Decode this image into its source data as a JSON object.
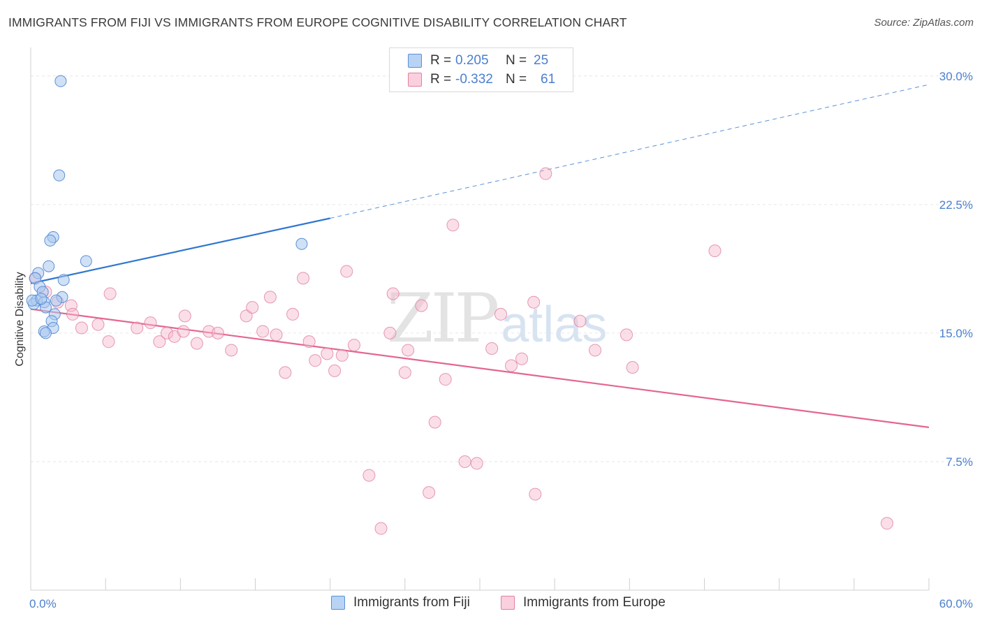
{
  "header": {
    "title": "IMMIGRANTS FROM FIJI VS IMMIGRANTS FROM EUROPE COGNITIVE DISABILITY CORRELATION CHART",
    "source": "Source: ZipAtlas.com"
  },
  "legend": {
    "rows": [
      {
        "r_label": "R =",
        "r_value": "0.205",
        "n_label": "N =",
        "n_value": "25"
      },
      {
        "r_label": "R =",
        "r_value": "-0.332",
        "n_label": "N =",
        "n_value": "61"
      }
    ]
  },
  "watermark": {
    "zip": "ZIP",
    "atlas": "atlas"
  },
  "colors": {
    "fiji_fill": "#a9c8ee",
    "fiji_stroke": "#5b8fd6",
    "fiji_line": "#2f77d0",
    "europe_fill": "#f6b9cd",
    "europe_stroke": "#e07fa0",
    "europe_line": "#e4668f",
    "axis_text": "#4a7fcf",
    "grid": "#e6e6e6"
  },
  "chart_data": {
    "type": "scatter",
    "title": "IMMIGRANTS FROM FIJI VS IMMIGRANTS FROM EUROPE COGNITIVE DISABILITY CORRELATION CHART",
    "xlabel": "",
    "ylabel": "Cognitive Disability",
    "xlim": [
      0,
      60
    ],
    "ylim": [
      0,
      31.5
    ],
    "x_tick_labels": [
      "0.0%",
      "60.0%"
    ],
    "y_ticks": [
      7.5,
      15.0,
      22.5,
      30.0
    ],
    "y_tick_labels": [
      "7.5%",
      "15.0%",
      "22.5%",
      "30.0%"
    ],
    "grid": "horizontal dashed",
    "legend_position": "top-center",
    "series": [
      {
        "name": "Immigrants from Fiji",
        "r": 0.205,
        "n": 25,
        "trend": {
          "x0": 0,
          "y0": 17.9,
          "x1": 20,
          "y1": 21.7,
          "dashed_to_x": 60,
          "dashed_to_y": 29.5
        },
        "points": [
          [
            2.0,
            29.7
          ],
          [
            1.9,
            24.2
          ],
          [
            1.5,
            20.6
          ],
          [
            1.3,
            20.4
          ],
          [
            1.2,
            18.9
          ],
          [
            3.7,
            19.2
          ],
          [
            0.5,
            18.5
          ],
          [
            0.3,
            18.2
          ],
          [
            2.2,
            18.1
          ],
          [
            0.6,
            17.7
          ],
          [
            0.8,
            17.4
          ],
          [
            2.1,
            17.1
          ],
          [
            0.4,
            16.9
          ],
          [
            0.9,
            16.8
          ],
          [
            0.2,
            16.7
          ],
          [
            1.7,
            16.9
          ],
          [
            1.0,
            16.5
          ],
          [
            1.6,
            16.1
          ],
          [
            1.4,
            15.7
          ],
          [
            1.5,
            15.3
          ],
          [
            0.9,
            15.1
          ],
          [
            1.0,
            15.0
          ],
          [
            18.1,
            20.2
          ],
          [
            0.1,
            16.9
          ],
          [
            0.7,
            17.0
          ]
        ]
      },
      {
        "name": "Immigrants from Europe",
        "r": -0.332,
        "n": 61,
        "trend": {
          "x0": 0,
          "y0": 16.4,
          "x1": 60,
          "y1": 9.5
        },
        "points": [
          [
            0.3,
            18.2
          ],
          [
            1.0,
            17.4
          ],
          [
            1.8,
            16.8
          ],
          [
            2.7,
            16.6
          ],
          [
            2.8,
            16.1
          ],
          [
            3.4,
            15.3
          ],
          [
            4.5,
            15.5
          ],
          [
            5.2,
            14.5
          ],
          [
            5.3,
            17.3
          ],
          [
            7.1,
            15.3
          ],
          [
            8.0,
            15.6
          ],
          [
            8.6,
            14.5
          ],
          [
            9.1,
            15.0
          ],
          [
            9.6,
            14.8
          ],
          [
            10.2,
            15.1
          ],
          [
            10.3,
            16.0
          ],
          [
            11.1,
            14.4
          ],
          [
            11.9,
            15.1
          ],
          [
            12.5,
            15.0
          ],
          [
            13.4,
            14.0
          ],
          [
            14.4,
            16.0
          ],
          [
            14.8,
            16.5
          ],
          [
            15.5,
            15.1
          ],
          [
            16.0,
            17.1
          ],
          [
            16.4,
            14.9
          ],
          [
            17.0,
            12.7
          ],
          [
            17.5,
            16.1
          ],
          [
            18.2,
            18.2
          ],
          [
            18.6,
            14.5
          ],
          [
            19.0,
            13.4
          ],
          [
            19.8,
            13.8
          ],
          [
            20.3,
            12.8
          ],
          [
            20.8,
            13.7
          ],
          [
            21.1,
            18.6
          ],
          [
            21.6,
            14.3
          ],
          [
            22.6,
            6.7
          ],
          [
            23.4,
            3.6
          ],
          [
            24.2,
            17.3
          ],
          [
            25.0,
            12.7
          ],
          [
            25.2,
            14.0
          ],
          [
            26.1,
            16.6
          ],
          [
            26.6,
            5.7
          ],
          [
            27.0,
            9.8
          ],
          [
            27.7,
            12.3
          ],
          [
            28.2,
            21.3
          ],
          [
            29.0,
            7.5
          ],
          [
            29.8,
            7.4
          ],
          [
            30.8,
            14.1
          ],
          [
            31.4,
            16.1
          ],
          [
            32.1,
            13.1
          ],
          [
            32.8,
            13.5
          ],
          [
            33.6,
            16.8
          ],
          [
            33.7,
            5.6
          ],
          [
            34.4,
            24.3
          ],
          [
            36.7,
            15.7
          ],
          [
            37.7,
            14.0
          ],
          [
            39.8,
            14.9
          ],
          [
            40.2,
            13.0
          ],
          [
            45.7,
            19.8
          ],
          [
            57.2,
            3.9
          ],
          [
            24.0,
            15.0
          ]
        ]
      }
    ]
  },
  "bottom_legend": {
    "items": [
      {
        "label": "Immigrants from Fiji"
      },
      {
        "label": "Immigrants from Europe"
      }
    ]
  },
  "axes": {
    "x_min_label": "0.0%",
    "x_max_label": "60.0%",
    "y_label": "Cognitive Disability"
  }
}
